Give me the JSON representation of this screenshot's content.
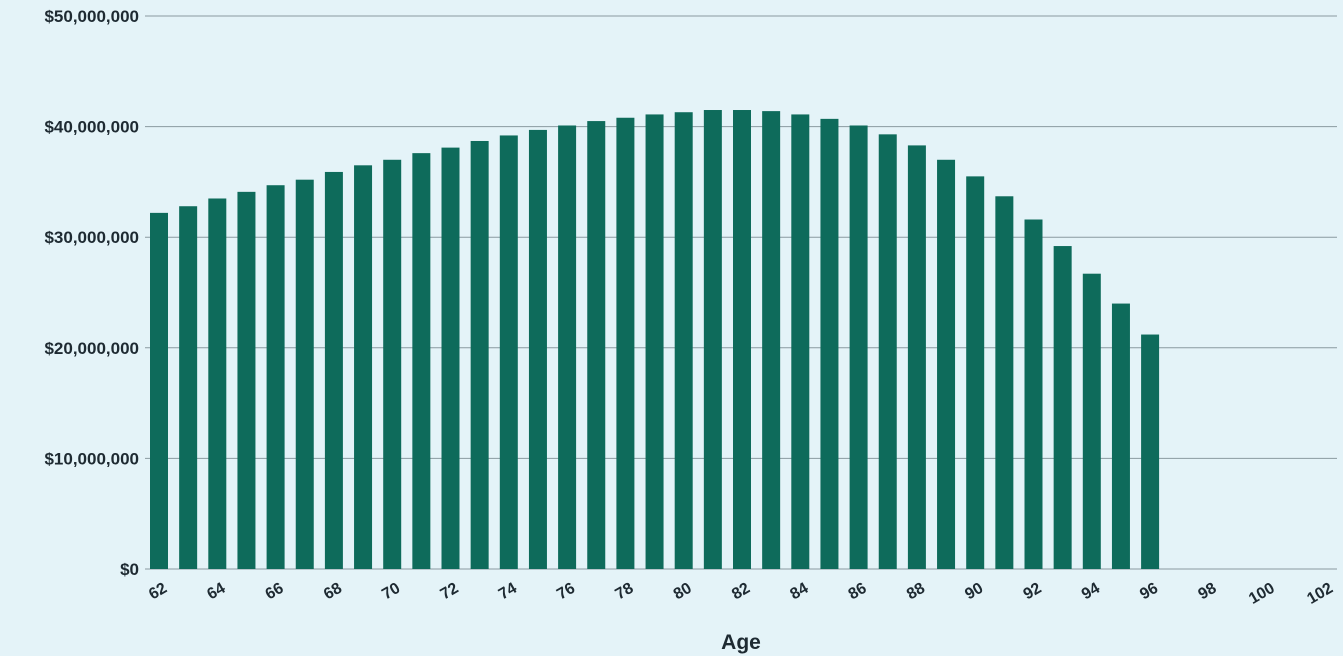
{
  "chart_data": {
    "type": "bar",
    "xlabel": "Age",
    "ylabel": "",
    "ylim": [
      0,
      50000000
    ],
    "y_ticks": [
      "$0",
      "$10,000,000",
      "$20,000,000",
      "$30,000,000",
      "$40,000,000",
      "$50,000,000"
    ],
    "y_tick_values": [
      0,
      10000000,
      20000000,
      30000000,
      40000000,
      50000000
    ],
    "x_tick_labels": [
      "62",
      "64",
      "66",
      "68",
      "70",
      "72",
      "74",
      "76",
      "78",
      "80",
      "82",
      "84",
      "86",
      "88",
      "90",
      "92",
      "94",
      "96",
      "98",
      "100",
      "102"
    ],
    "categories": [
      62,
      63,
      64,
      65,
      66,
      67,
      68,
      69,
      70,
      71,
      72,
      73,
      74,
      75,
      76,
      77,
      78,
      79,
      80,
      81,
      82,
      83,
      84,
      85,
      86,
      87,
      88,
      89,
      90,
      91,
      92,
      93,
      94,
      95,
      96,
      97,
      98,
      99,
      100,
      101,
      102
    ],
    "values": [
      32200000,
      32800000,
      33500000,
      34100000,
      34700000,
      35200000,
      35900000,
      36500000,
      37000000,
      37600000,
      38100000,
      38700000,
      39200000,
      39700000,
      40100000,
      40500000,
      40800000,
      41100000,
      41300000,
      41500000,
      41500000,
      41400000,
      41100000,
      40700000,
      40100000,
      39300000,
      38300000,
      37000000,
      35500000,
      33700000,
      31600000,
      29200000,
      26700000,
      24000000,
      21200000,
      0,
      0,
      0,
      0,
      0,
      0
    ],
    "grid": true,
    "colors": {
      "bar": "#0e6b5b",
      "grid": "#8a9aa0",
      "background": "#e4f3f8",
      "text": "#1e2a32"
    }
  }
}
